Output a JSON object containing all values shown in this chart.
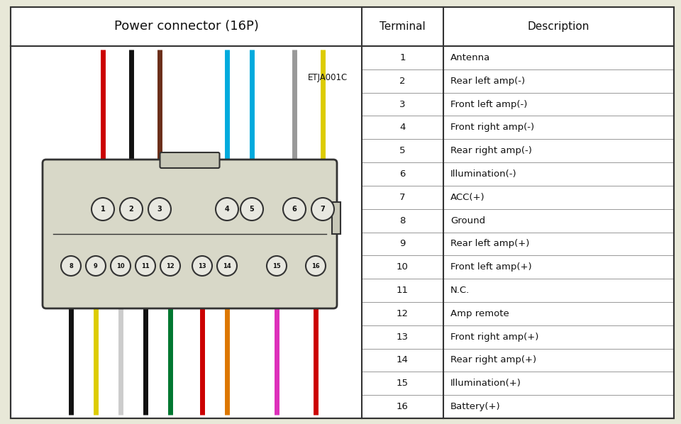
{
  "title_connector": "Power connector (16P)",
  "col_terminal": "Terminal",
  "col_description": "Description",
  "label_code": "ETJA001C",
  "terminals": [
    1,
    2,
    3,
    4,
    5,
    6,
    7,
    8,
    9,
    10,
    11,
    12,
    13,
    14,
    15,
    16
  ],
  "descriptions": [
    "Antenna",
    "Rear left amp(-)",
    "Front left amp(-)",
    "Front right amp(-)",
    "Rear right amp(-)",
    "Illumination(-)",
    "ACC(+)",
    "Ground",
    "Rear left amp(+)",
    "Front left amp(+)",
    "N.C.",
    "Amp remote",
    "Front right amp(+)",
    "Rear right amp(+)",
    "Illumination(+)",
    "Battery(+)"
  ],
  "top_row_pins": [
    1,
    2,
    3,
    4,
    5,
    6,
    7
  ],
  "bottom_row_pins": [
    8,
    9,
    10,
    11,
    12,
    13,
    14,
    15,
    16
  ],
  "top_wire_colors": [
    "#cc0000",
    "#111111",
    "#6b2f1a",
    "#00aadd",
    "#00aadd",
    "#999999",
    "#ddcc00"
  ],
  "bottom_wire_colors": [
    "#111111",
    "#ddcc00",
    "#cccccc",
    "#111111",
    "#007730",
    "#cc0000",
    "#dd7700",
    "#dd30bb",
    "#cc0000"
  ],
  "bg_color": "#e8e8d8",
  "table_bg": "#ffffff",
  "border_color": "#333333",
  "fig_width": 9.6,
  "fig_height": 5.98
}
